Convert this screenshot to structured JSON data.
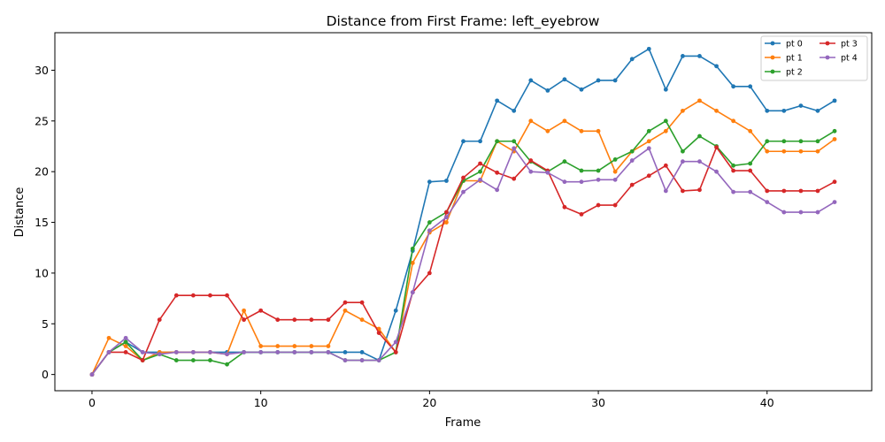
{
  "chart_data": {
    "type": "line",
    "title": "Distance from First Frame: left_eyebrow",
    "xlabel": "Frame",
    "ylabel": "Distance",
    "xlim": [
      -2.2,
      46.2
    ],
    "ylim": [
      -1.6,
      33.7
    ],
    "xticks": [
      0,
      10,
      20,
      30,
      40
    ],
    "yticks": [
      0,
      5,
      10,
      15,
      20,
      25,
      30
    ],
    "grid": false,
    "legend_position": "top-right",
    "legend_columns": 2,
    "x": [
      0,
      1,
      2,
      3,
      4,
      5,
      6,
      7,
      8,
      9,
      10,
      11,
      12,
      13,
      14,
      15,
      16,
      17,
      18,
      19,
      20,
      21,
      22,
      23,
      24,
      25,
      26,
      27,
      28,
      29,
      30,
      31,
      32,
      33,
      34,
      35,
      36,
      37,
      38,
      39,
      40,
      41,
      42,
      43,
      44
    ],
    "series": [
      {
        "name": "pt 0",
        "color": "#1f77b4",
        "values": [
          0,
          2.2,
          3.2,
          2.2,
          2.2,
          2.2,
          2.2,
          2.2,
          2.2,
          2.2,
          2.2,
          2.2,
          2.2,
          2.2,
          2.2,
          2.2,
          2.2,
          1.4,
          6.3,
          12.2,
          19.0,
          19.1,
          23.0,
          23.0,
          27.0,
          26.0,
          29.0,
          28.0,
          29.1,
          28.1,
          29.0,
          29.0,
          31.1,
          32.1,
          28.1,
          31.4,
          31.4,
          30.4,
          28.4,
          28.4,
          26.0,
          26.0,
          26.5,
          26.0,
          27.0
        ]
      },
      {
        "name": "pt 1",
        "color": "#ff7f0e",
        "values": [
          0,
          3.6,
          2.8,
          1.4,
          2.2,
          2.2,
          2.2,
          2.2,
          2.0,
          6.3,
          2.8,
          2.8,
          2.8,
          2.8,
          2.8,
          6.3,
          5.4,
          4.5,
          2.2,
          11.0,
          14.0,
          15.0,
          19.1,
          19.1,
          23.0,
          22.0,
          25.0,
          24.0,
          25.0,
          24.0,
          24.0,
          20.0,
          22.0,
          23.0,
          24.0,
          26.0,
          27.0,
          26.0,
          25.0,
          24.0,
          22.0,
          22.0,
          22.0,
          22.0,
          23.2
        ]
      },
      {
        "name": "pt 2",
        "color": "#2ca02c",
        "values": [
          0,
          2.2,
          3.2,
          1.4,
          2.0,
          1.4,
          1.4,
          1.4,
          1.0,
          2.2,
          2.2,
          2.2,
          2.2,
          2.2,
          2.2,
          1.4,
          1.4,
          1.4,
          2.2,
          12.4,
          15.0,
          16.0,
          19.1,
          20.0,
          23.0,
          23.0,
          21.0,
          20.0,
          21.0,
          20.1,
          20.1,
          21.2,
          22.0,
          24.0,
          25.0,
          22.0,
          23.5,
          22.5,
          20.6,
          20.8,
          23.0,
          23.0,
          23.0,
          23.0,
          24.0
        ]
      },
      {
        "name": "pt 3",
        "color": "#d62728",
        "values": [
          0,
          2.2,
          2.2,
          1.4,
          5.4,
          7.8,
          7.8,
          7.8,
          7.8,
          5.4,
          6.3,
          5.4,
          5.4,
          5.4,
          5.4,
          7.1,
          7.1,
          4.1,
          2.2,
          8.1,
          10.0,
          16.0,
          19.4,
          20.8,
          19.9,
          19.3,
          21.1,
          20.1,
          16.5,
          15.8,
          16.7,
          16.7,
          18.7,
          19.6,
          20.6,
          18.1,
          18.2,
          22.4,
          20.1,
          20.1,
          18.1,
          18.1,
          18.1,
          18.1,
          19.0
        ]
      },
      {
        "name": "pt 4",
        "color": "#9467bd",
        "values": [
          0,
          2.2,
          3.6,
          2.2,
          2.0,
          2.2,
          2.2,
          2.2,
          2.0,
          2.2,
          2.2,
          2.2,
          2.2,
          2.2,
          2.2,
          1.4,
          1.4,
          1.4,
          3.2,
          8.1,
          14.2,
          15.5,
          18.0,
          19.2,
          18.2,
          22.3,
          20.0,
          19.9,
          19.0,
          19.0,
          19.2,
          19.2,
          21.1,
          22.3,
          18.1,
          21.0,
          21.0,
          20.0,
          18.0,
          18.0,
          17.0,
          16.0,
          16.0,
          16.0,
          17.0
        ]
      }
    ]
  }
}
